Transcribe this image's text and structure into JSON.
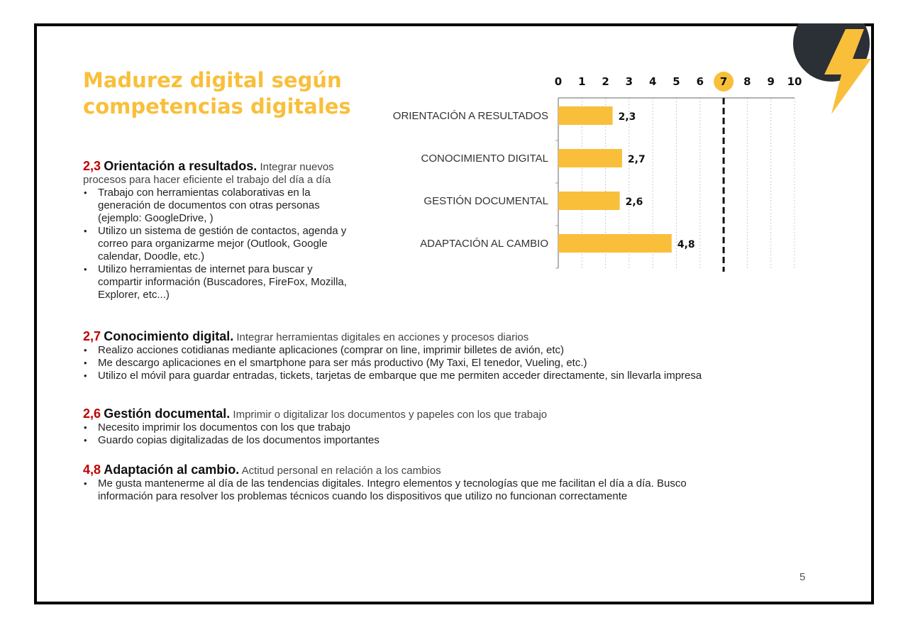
{
  "slide": {
    "title_line1": "Madurez digital según",
    "title_line2": "competencias digitales",
    "page_number": "5",
    "colors": {
      "accent": "#f9bf3b",
      "score": "#c00000",
      "dark_shape": "#2b2f36"
    }
  },
  "sections": [
    {
      "score": "2,3",
      "name": "Orientación a resultados.",
      "desc": "Integrar nuevos procesos para hacer eficiente el trabajo del día a día",
      "bullets": [
        "Trabajo con herramientas colaborativas en la generación de documentos con otras personas (ejemplo: GoogleDrive, )",
        "Utilizo un sistema de gestión de contactos, agenda y correo para organizarme mejor (Outlook, Google calendar, Doodle, etc.)",
        "Utilizo herramientas de internet para buscar y compartir información (Buscadores, FireFox, Mozilla, Explorer, etc...)"
      ]
    },
    {
      "score": "2,7",
      "name": "Conocimiento digital.",
      "desc": "Integrar herramientas digitales en acciones y procesos diarios",
      "bullets": [
        "Realizo acciones cotidianas mediante aplicaciones (comprar on line, imprimir billetes de avión, etc)",
        "Me descargo aplicaciones en el smartphone para ser más productivo (My Taxi, El tenedor, Vueling, etc.)",
        "Utilizo el móvil para guardar entradas, tickets, tarjetas de embarque que me permiten acceder directamente, sin llevarla impresa"
      ]
    },
    {
      "score": "2,6",
      "name": "Gestión documental.",
      "desc": "Imprimir o digitalizar los documentos y papeles con los que trabajo",
      "bullets": [
        "Necesito imprimir los documentos con los que trabajo",
        "Guardo copias digitalizadas de los documentos importantes"
      ]
    },
    {
      "score": "4,8",
      "name": "Adaptación al cambio.",
      "desc": "Actitud personal en relación a los cambios",
      "bullets": [
        "Me gusta mantenerme al día de las tendencias digitales. Integro elementos y tecnologías que me facilitan el día a día. Busco información para resolver los problemas técnicos cuando los dispositivos que utilizo no funcionan correctamente"
      ]
    }
  ],
  "chart_data": {
    "type": "bar",
    "orientation": "horizontal",
    "categories": [
      "ORIENTACIÓN A RESULTADOS",
      "CONOCIMIENTO DIGITAL",
      "GESTIÓN DOCUMENTAL",
      "ADAPTACIÓN AL CAMBIO"
    ],
    "values": [
      2.3,
      2.7,
      2.6,
      4.8
    ],
    "value_labels": [
      "2,3",
      "2,7",
      "2,6",
      "4,8"
    ],
    "xlim": [
      0,
      10
    ],
    "ticks": [
      "0",
      "1",
      "2",
      "3",
      "4",
      "5",
      "6",
      "7",
      "8",
      "9",
      "10"
    ],
    "axis_position": "top",
    "reference_line": {
      "value": 7,
      "label": "7",
      "style": "dashed"
    },
    "grid": "vertical-dotted",
    "bar_color": "#f9bf3b",
    "title": "",
    "xlabel": "",
    "ylabel": ""
  }
}
